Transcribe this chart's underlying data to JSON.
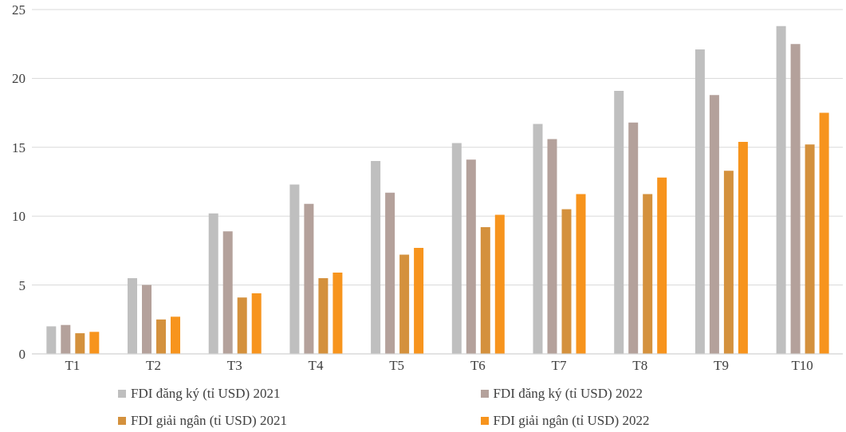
{
  "chart_data": {
    "type": "bar",
    "categories": [
      "T1",
      "T2",
      "T3",
      "T4",
      "T5",
      "T6",
      "T7",
      "T8",
      "T9",
      "T10"
    ],
    "series": [
      {
        "name": "FDI đăng ký (tỉ USD) 2021",
        "color": "#bfbfbf",
        "values": [
          2.0,
          5.5,
          10.2,
          12.3,
          14.0,
          15.3,
          16.7,
          19.1,
          22.1,
          23.8
        ]
      },
      {
        "name": "FDI đăng ký (tỉ USD) 2022",
        "color": "#b4a19b",
        "values": [
          2.1,
          5.0,
          8.9,
          10.9,
          11.7,
          14.1,
          15.6,
          16.8,
          18.8,
          22.5
        ]
      },
      {
        "name": "FDI giải ngân (tỉ USD) 2021",
        "color": "#d4913d",
        "values": [
          1.5,
          2.5,
          4.1,
          5.5,
          7.2,
          9.2,
          10.5,
          11.6,
          13.3,
          15.2
        ]
      },
      {
        "name": "FDI giải ngân (tỉ USD) 2022",
        "color": "#f7941d",
        "values": [
          1.6,
          2.7,
          4.4,
          5.9,
          7.7,
          10.1,
          11.6,
          12.8,
          15.4,
          17.5
        ]
      }
    ],
    "ylim": [
      0,
      25
    ],
    "yticks": [
      0,
      5,
      10,
      15,
      20,
      25
    ],
    "grid": "y",
    "legend": "bottom"
  }
}
